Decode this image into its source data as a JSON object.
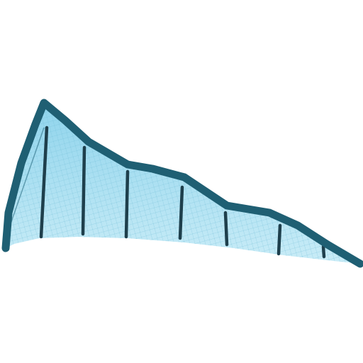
{
  "colors": {
    "background": "#ffffff",
    "fill": "#8fd4ec",
    "fill_light": "#c9ecf7",
    "mesh": "#6fbcd6",
    "ridge": "#1f5f73",
    "post": "#1e3f4c"
  }
}
